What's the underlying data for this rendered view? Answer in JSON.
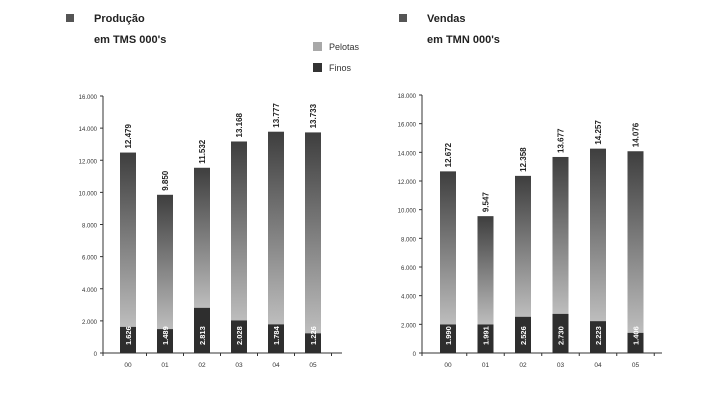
{
  "chart_data": [
    {
      "type": "bar",
      "title_line1": "Produção",
      "title_line2": "em TMS 000's",
      "categories": [
        "00",
        "01",
        "02",
        "03",
        "04",
        "05"
      ],
      "ylim": [
        0,
        16000
      ],
      "yticks": [
        "16.000",
        "14.000",
        "12.000",
        "10.000",
        "8.000",
        "6.000",
        "4.000",
        "2.000",
        "0"
      ],
      "series": [
        {
          "name": "Finos",
          "values": [
            1626,
            1489,
            2813,
            2028,
            1784,
            1226
          ],
          "labels": [
            "1.626",
            "1.489",
            "2.813",
            "2.028",
            "1.784",
            "1.226"
          ]
        },
        {
          "name": "Pelotas",
          "values": [
            10853,
            8361,
            8719,
            11140,
            11993,
            12507
          ]
        }
      ],
      "totals": [
        12479,
        9850,
        11532,
        13168,
        13777,
        13733
      ],
      "total_labels": [
        "12.479",
        "9.850",
        "11.532",
        "13.168",
        "13.777",
        "13.733"
      ]
    },
    {
      "type": "bar",
      "title_line1": "Vendas",
      "title_line2": "em TMN 000's",
      "categories": [
        "00",
        "01",
        "02",
        "03",
        "04",
        "05"
      ],
      "ylim": [
        0,
        18000
      ],
      "yticks": [
        "18.000",
        "16.000",
        "14.000",
        "12.000",
        "10.000",
        "8.000",
        "6.000",
        "4.000",
        "2.000",
        "0"
      ],
      "series": [
        {
          "name": "Finos",
          "values": [
            1990,
            1991,
            2526,
            2730,
            2223,
            1406
          ],
          "labels": [
            "1.990",
            "1.991",
            "2.526",
            "2.730",
            "2.223",
            "1.406"
          ]
        },
        {
          "name": "Pelotas",
          "values": [
            10682,
            7556,
            9832,
            10947,
            12034,
            12670
          ]
        }
      ],
      "totals": [
        12672,
        9547,
        12358,
        13677,
        14257,
        14076
      ],
      "total_labels": [
        "12.672",
        "9.547",
        "12.358",
        "13.677",
        "14.257",
        "14.076"
      ]
    }
  ],
  "legend": [
    {
      "label": "Pelotas",
      "color": "#a8a8a8"
    },
    {
      "label": "Finos",
      "color": "#333333"
    }
  ],
  "colors": {
    "finos": "#2e2e2e",
    "pelotas_top": "#3e3e3e",
    "pelotas_bottom": "#bdbdbd",
    "title_marker": "#555555"
  }
}
